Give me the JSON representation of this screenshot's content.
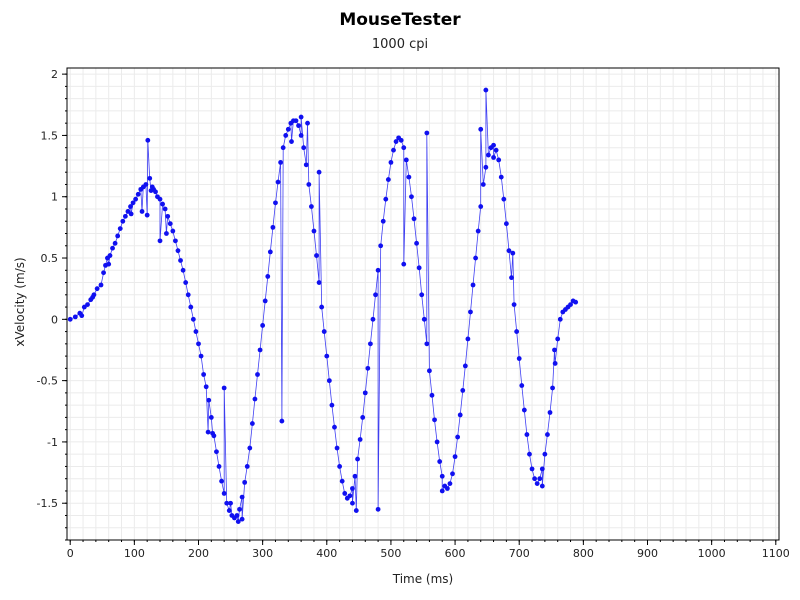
{
  "title": "MouseTester",
  "subtitle": "1000 cpi",
  "colors": {
    "series": "#1010f0",
    "grid": "#ebebeb",
    "axis": "#000000"
  },
  "chart_data": {
    "type": "scatter",
    "xlabel": "Time (ms)",
    "ylabel": "xVelocity (m/s)",
    "xlim": [
      -5,
      1105
    ],
    "ylim": [
      -1.8,
      2.05
    ],
    "xticks": [
      0,
      100,
      200,
      300,
      400,
      500,
      600,
      700,
      800,
      900,
      1000,
      1100
    ],
    "yticks": [
      -1.5,
      -1,
      -0.5,
      0,
      0.5,
      1,
      1.5,
      2
    ],
    "grid": true,
    "series": [
      {
        "style": "points",
        "points": [
          [
            0,
            0
          ],
          [
            8,
            0.02
          ],
          [
            15,
            0.05
          ],
          [
            18,
            0.03
          ],
          [
            22,
            0.1
          ],
          [
            27,
            0.12
          ],
          [
            32,
            0.16
          ],
          [
            37,
            0.2
          ],
          [
            42,
            0.25
          ],
          [
            48,
            0.28
          ],
          [
            52,
            0.38
          ],
          [
            55,
            0.44
          ],
          [
            58,
            0.5
          ],
          [
            62,
            0.52
          ],
          [
            66,
            0.58
          ],
          [
            70,
            0.62
          ],
          [
            74,
            0.68
          ],
          [
            78,
            0.74
          ],
          [
            82,
            0.8
          ],
          [
            86,
            0.84
          ],
          [
            90,
            0.88
          ],
          [
            94,
            0.92
          ],
          [
            98,
            0.95
          ],
          [
            102,
            0.98
          ],
          [
            106,
            1.02
          ],
          [
            110,
            1.06
          ],
          [
            114,
            1.08
          ],
          [
            118,
            1.1
          ],
          [
            121,
            1.46
          ],
          [
            124,
            1.15
          ],
          [
            126,
            1.05
          ],
          [
            128,
            1.08
          ],
          [
            130,
            1.06
          ],
          [
            133,
            1.04
          ],
          [
            136,
            1.0
          ],
          [
            140,
            0.98
          ],
          [
            144,
            0.94
          ],
          [
            148,
            0.9
          ],
          [
            152,
            0.84
          ],
          [
            156,
            0.78
          ],
          [
            160,
            0.72
          ],
          [
            164,
            0.64
          ],
          [
            168,
            0.56
          ],
          [
            172,
            0.48
          ],
          [
            176,
            0.4
          ],
          [
            180,
            0.3
          ],
          [
            184,
            0.2
          ],
          [
            188,
            0.1
          ],
          [
            192,
            0.0
          ],
          [
            196,
            -0.1
          ],
          [
            200,
            -0.2
          ],
          [
            204,
            -0.3
          ],
          [
            208,
            -0.45
          ],
          [
            212,
            -0.55
          ],
          [
            216,
            -0.66
          ],
          [
            220,
            -0.8
          ],
          [
            224,
            -0.95
          ],
          [
            228,
            -1.08
          ],
          [
            232,
            -1.2
          ],
          [
            236,
            -1.32
          ],
          [
            240,
            -1.42
          ],
          [
            244,
            -1.5
          ],
          [
            248,
            -1.56
          ],
          [
            252,
            -1.6
          ],
          [
            256,
            -1.62
          ],
          [
            260,
            -1.6
          ],
          [
            264,
            -1.55
          ],
          [
            268,
            -1.45
          ],
          [
            272,
            -1.33
          ],
          [
            276,
            -1.2
          ],
          [
            280,
            -1.05
          ],
          [
            284,
            -0.85
          ],
          [
            288,
            -0.65
          ],
          [
            292,
            -0.45
          ],
          [
            296,
            -0.25
          ],
          [
            300,
            -0.05
          ],
          [
            304,
            0.15
          ],
          [
            308,
            0.35
          ],
          [
            312,
            0.55
          ],
          [
            316,
            0.75
          ],
          [
            320,
            0.95
          ],
          [
            324,
            1.12
          ],
          [
            328,
            1.28
          ],
          [
            332,
            1.4
          ],
          [
            336,
            1.5
          ],
          [
            340,
            1.55
          ],
          [
            344,
            1.6
          ],
          [
            348,
            1.62
          ],
          [
            352,
            1.62
          ],
          [
            356,
            1.58
          ],
          [
            360,
            1.5
          ],
          [
            364,
            1.4
          ],
          [
            368,
            1.26
          ],
          [
            372,
            1.1
          ],
          [
            376,
            0.92
          ],
          [
            380,
            0.72
          ],
          [
            384,
            0.52
          ],
          [
            388,
            0.3
          ],
          [
            392,
            0.1
          ],
          [
            396,
            -0.1
          ],
          [
            400,
            -0.3
          ],
          [
            404,
            -0.5
          ],
          [
            408,
            -0.7
          ],
          [
            412,
            -0.88
          ],
          [
            416,
            -1.05
          ],
          [
            420,
            -1.2
          ],
          [
            424,
            -1.32
          ],
          [
            428,
            -1.42
          ],
          [
            432,
            -1.46
          ],
          [
            436,
            -1.44
          ],
          [
            440,
            -1.38
          ],
          [
            444,
            -1.28
          ],
          [
            448,
            -1.14
          ],
          [
            452,
            -0.98
          ],
          [
            456,
            -0.8
          ],
          [
            460,
            -0.6
          ],
          [
            464,
            -0.4
          ],
          [
            468,
            -0.2
          ],
          [
            472,
            0.0
          ],
          [
            476,
            0.2
          ],
          [
            480,
            0.4
          ],
          [
            484,
            0.6
          ],
          [
            488,
            0.8
          ],
          [
            492,
            0.98
          ],
          [
            496,
            1.14
          ],
          [
            500,
            1.28
          ],
          [
            504,
            1.38
          ],
          [
            508,
            1.45
          ],
          [
            512,
            1.48
          ],
          [
            516,
            1.46
          ],
          [
            520,
            1.4
          ],
          [
            524,
            1.3
          ],
          [
            528,
            1.16
          ],
          [
            532,
            1.0
          ],
          [
            536,
            0.82
          ],
          [
            540,
            0.62
          ],
          [
            544,
            0.42
          ],
          [
            548,
            0.2
          ],
          [
            552,
            0.0
          ],
          [
            556,
            -0.2
          ],
          [
            560,
            -0.42
          ],
          [
            564,
            -0.62
          ],
          [
            568,
            -0.82
          ],
          [
            572,
            -1.0
          ],
          [
            576,
            -1.16
          ],
          [
            580,
            -1.28
          ],
          [
            584,
            -1.36
          ],
          [
            588,
            -1.38
          ],
          [
            592,
            -1.34
          ],
          [
            596,
            -1.26
          ],
          [
            600,
            -1.12
          ],
          [
            604,
            -0.96
          ],
          [
            608,
            -0.78
          ],
          [
            612,
            -0.58
          ],
          [
            616,
            -0.38
          ],
          [
            620,
            -0.16
          ],
          [
            624,
            0.06
          ],
          [
            628,
            0.28
          ],
          [
            632,
            0.5
          ],
          [
            636,
            0.72
          ],
          [
            640,
            0.92
          ],
          [
            644,
            1.1
          ],
          [
            648,
            1.24
          ],
          [
            652,
            1.34
          ],
          [
            656,
            1.4
          ],
          [
            660,
            1.42
          ],
          [
            664,
            1.38
          ],
          [
            668,
            1.3
          ],
          [
            672,
            1.16
          ],
          [
            676,
            0.98
          ],
          [
            680,
            0.78
          ],
          [
            684,
            0.56
          ],
          [
            688,
            0.34
          ],
          [
            692,
            0.12
          ],
          [
            696,
            -0.1
          ],
          [
            700,
            -0.32
          ],
          [
            704,
            -0.54
          ],
          [
            708,
            -0.74
          ],
          [
            712,
            -0.94
          ],
          [
            716,
            -1.1
          ],
          [
            720,
            -1.22
          ],
          [
            724,
            -1.3
          ],
          [
            728,
            -1.34
          ],
          [
            732,
            -1.3
          ],
          [
            736,
            -1.22
          ],
          [
            740,
            -1.1
          ],
          [
            744,
            -0.94
          ],
          [
            748,
            -0.76
          ],
          [
            752,
            -0.56
          ],
          [
            756,
            -0.36
          ],
          [
            760,
            -0.16
          ],
          [
            764,
            0.0
          ],
          [
            768,
            0.06
          ],
          [
            772,
            0.08
          ],
          [
            776,
            0.1
          ],
          [
            780,
            0.12
          ],
          [
            784,
            0.15
          ],
          [
            788,
            0.14
          ],
          [
            35,
            0.18
          ],
          [
            60,
            0.45
          ],
          [
            95,
            0.86
          ],
          [
            112,
            0.88
          ],
          [
            120,
            0.85
          ],
          [
            140,
            0.64
          ],
          [
            150,
            0.7
          ],
          [
            215,
            -0.92
          ],
          [
            222,
            -0.93
          ],
          [
            240,
            -0.56
          ],
          [
            250,
            -1.5
          ],
          [
            262,
            -1.65
          ],
          [
            268,
            -1.63
          ],
          [
            330,
            -0.83
          ],
          [
            345,
            1.45
          ],
          [
            360,
            1.65
          ],
          [
            370,
            1.6
          ],
          [
            388,
            1.2
          ],
          [
            440,
            -1.5
          ],
          [
            446,
            -1.56
          ],
          [
            480,
            -1.55
          ],
          [
            520,
            0.45
          ],
          [
            556,
            1.52
          ],
          [
            580,
            -1.4
          ],
          [
            640,
            1.55
          ],
          [
            648,
            1.87
          ],
          [
            660,
            1.32
          ],
          [
            690,
            0.54
          ],
          [
            736,
            -1.36
          ],
          [
            755,
            -0.25
          ]
        ]
      }
    ]
  }
}
